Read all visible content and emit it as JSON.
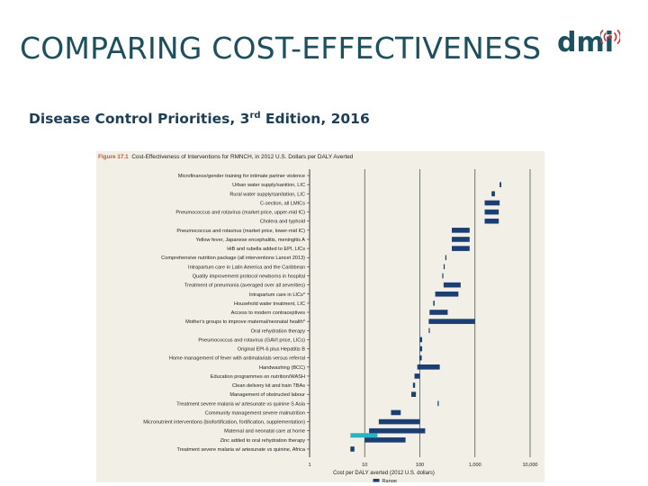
{
  "slide": {
    "title": "COMPARING COST-EFFECTIVENESS",
    "logo": "dmi",
    "subtitle_main": "Disease Control Priorities, 3",
    "subtitle_sup": "rd",
    "subtitle_rest": " Edition, 2016"
  },
  "figure": {
    "label": "Figure 17.1",
    "caption": "Cost-Effectiveness of Interventions for RMNCH, in 2012 U.S. Dollars per DALY Averted"
  },
  "colors": {
    "bar": "#1c3f73",
    "highlight": "#2ab4c0",
    "grid": "#555555"
  },
  "chart_data": {
    "type": "bar",
    "orientation": "horizontal-range",
    "title": "Cost-Effectiveness of Interventions for RMNCH, in 2012 U.S. Dollars per DALY Averted",
    "xlabel": "Cost per DALY averted (2012 U.S. dollars)",
    "xscale": "log",
    "xlim": [
      1,
      10000
    ],
    "xticks": [
      "1",
      "10",
      "100",
      "1,000",
      "10,000"
    ],
    "xtick_values": [
      1,
      10,
      100,
      1000,
      10000
    ],
    "legend": "Range",
    "categories": [
      "Microfinance/gender training for intimate partner violence",
      "Urban water supply/sanition, LIC",
      "Rural water supply/sanitation, LIC",
      "C-section, all LMICs",
      "Pneumococcus and rotavirus (market price, upper-mid IC)",
      "Cholera and typhoid",
      "Pneumococcus and rotavirus (market price, lower-mid IC)",
      "Yellow fever, Japanese encephalitis, meningitis A",
      "HiB and rubella added to EPI, LICs",
      "Comprehensive nutrition package (all interventions Lancet 2013)",
      "Intrapartum care in Latin America and the Caribbean",
      "Quality improvement protocol newborns in hospital",
      "Treatment of pneumonia (averaged over all severities)",
      "Intrapartum care in LICs*",
      "Household water treatment, LIC",
      "Access to modern contraceptives",
      "Mother's groups to improve maternal/neonatal health*",
      "Oral rehydration therapy",
      "Pneumococcus and rotavirus (GAVI price, LICs)",
      "Original EPI-6 plus Hepatitis B",
      "Home management of fever with antimalarials versus referral",
      "Handwashing (BCC)",
      "Education programmes on nutrition/WASH",
      "Clean delivery kit and train TBAs",
      "Management of obstructed labour",
      "Treatment severe malaria w/ artesunate vs quinine S Asia",
      "Community management severe malnutrition",
      "Micronutrient interventions (biofortification, fortification, supplementation)",
      "Maternal and neonatal care at home",
      "Zinc added to oral rehydration therapy",
      "Treatment severe malaria w/ artesunate vs quinine, Africa"
    ],
    "ranges": [
      [
        null,
        null
      ],
      [
        2800,
        3000
      ],
      [
        2000,
        2300
      ],
      [
        1500,
        2800
      ],
      [
        1500,
        2700
      ],
      [
        1500,
        2700
      ],
      [
        380,
        800
      ],
      [
        380,
        800
      ],
      [
        380,
        800
      ],
      [
        290,
        300
      ],
      [
        270,
        280
      ],
      [
        255,
        265
      ],
      [
        270,
        550
      ],
      [
        190,
        500
      ],
      [
        175,
        185
      ],
      [
        150,
        320
      ],
      [
        145,
        1000
      ],
      [
        145,
        150
      ],
      [
        100,
        110
      ],
      [
        100,
        110
      ],
      [
        98,
        108
      ],
      [
        90,
        230
      ],
      [
        80,
        100
      ],
      [
        75,
        82
      ],
      [
        70,
        85
      ],
      [
        210,
        220
      ],
      [
        30,
        45
      ],
      [
        18,
        100
      ],
      [
        12,
        125
      ],
      [
        10,
        55
      ],
      [
        5.5,
        6.5
      ]
    ],
    "highlight_ranges": [
      [
        null,
        null
      ],
      [
        null,
        null
      ],
      [
        null,
        null
      ],
      [
        null,
        null
      ],
      [
        null,
        null
      ],
      [
        null,
        null
      ],
      [
        null,
        null
      ],
      [
        null,
        null
      ],
      [
        null,
        null
      ],
      [
        null,
        null
      ],
      [
        null,
        null
      ],
      [
        null,
        null
      ],
      [
        null,
        null
      ],
      [
        null,
        null
      ],
      [
        null,
        null
      ],
      [
        null,
        null
      ],
      [
        null,
        null
      ],
      [
        null,
        null
      ],
      [
        null,
        null
      ],
      [
        null,
        null
      ],
      [
        null,
        null
      ],
      [
        null,
        null
      ],
      [
        null,
        null
      ],
      [
        null,
        null
      ],
      [
        null,
        null
      ],
      [
        null,
        null
      ],
      [
        null,
        null
      ],
      [
        null,
        null
      ],
      [
        null,
        null
      ],
      [
        5.5,
        17
      ],
      [
        null,
        null
      ]
    ]
  }
}
